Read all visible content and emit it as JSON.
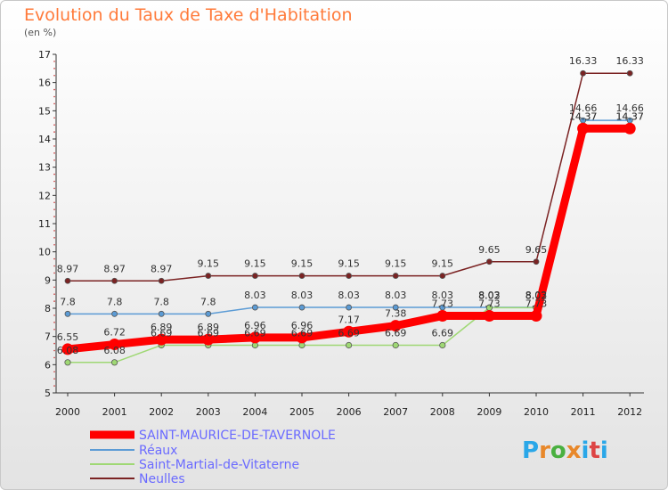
{
  "title": "Evolution du Taux de Taxe d'Habitation",
  "subtitle": "(en %)",
  "logo": {
    "text": "Proxiti",
    "colors": [
      "#2aa7e8",
      "#e8882a",
      "#4ab040",
      "#e8882a",
      "#2aa7e8",
      "#d44",
      "#2aa7e8"
    ]
  },
  "chart_data": {
    "type": "line",
    "title": "Evolution du Taux de Taxe d'Habitation",
    "ylabel": "(en %)",
    "xlabel": "",
    "x": [
      "2000",
      "2001",
      "2002",
      "2003",
      "2004",
      "2005",
      "2006",
      "2007",
      "2008",
      "2009",
      "2010",
      "2011",
      "2012"
    ],
    "ylim": [
      5,
      17
    ],
    "yticks": [
      5,
      6,
      7,
      8,
      9,
      10,
      11,
      12,
      13,
      14,
      15,
      16,
      17
    ],
    "grid": false,
    "legend_position": "bottom-left",
    "series": [
      {
        "name": "SAINT-MAURICE-DE-TAVERNOLE",
        "color": "#ff0000",
        "values": [
          6.55,
          6.72,
          6.89,
          6.89,
          6.96,
          6.96,
          7.17,
          7.38,
          7.73,
          7.73,
          7.73,
          14.37,
          14.37
        ],
        "labels": [
          "6.55",
          "6.72",
          "6.89",
          "6.89",
          "6.96",
          "6.96",
          "7.17",
          "7.38",
          "7.73",
          "7.73",
          "7.73",
          "14.37",
          "14.37"
        ]
      },
      {
        "name": "Réaux",
        "color": "#5b9bd5",
        "values": [
          7.8,
          7.8,
          7.8,
          7.8,
          8.03,
          8.03,
          8.03,
          8.03,
          8.03,
          8.03,
          8.03,
          14.66,
          14.66
        ],
        "labels": [
          "7.8",
          "7.8",
          "7.8",
          "7.8",
          "8.03",
          "8.03",
          "8.03",
          "8.03",
          "8.03",
          "8.03",
          "8.03",
          "14.66",
          "14.66"
        ]
      },
      {
        "name": "Saint-Martial-de-Vitaterne",
        "color": "#9fd874",
        "values": [
          6.08,
          6.08,
          6.69,
          6.69,
          6.69,
          6.69,
          6.69,
          6.69,
          6.69,
          8.02,
          8.02,
          14.37,
          14.37
        ],
        "labels": [
          "6.08",
          "6.08",
          "6.69",
          "6.69",
          "6.69",
          "6.69",
          "6.69",
          "6.69",
          "6.69",
          "8.02",
          "8.02",
          "14.37",
          "14.37"
        ]
      },
      {
        "name": "Neulles",
        "color": "#7b2323",
        "values": [
          8.97,
          8.97,
          8.97,
          9.15,
          9.15,
          9.15,
          9.15,
          9.15,
          9.15,
          9.65,
          9.65,
          16.33,
          16.33
        ],
        "labels": [
          "8.97",
          "8.97",
          "8.97",
          "9.15",
          "9.15",
          "9.15",
          "9.15",
          "9.15",
          "9.15",
          "9.65",
          "9.65",
          "16.33",
          "16.33"
        ]
      }
    ]
  }
}
